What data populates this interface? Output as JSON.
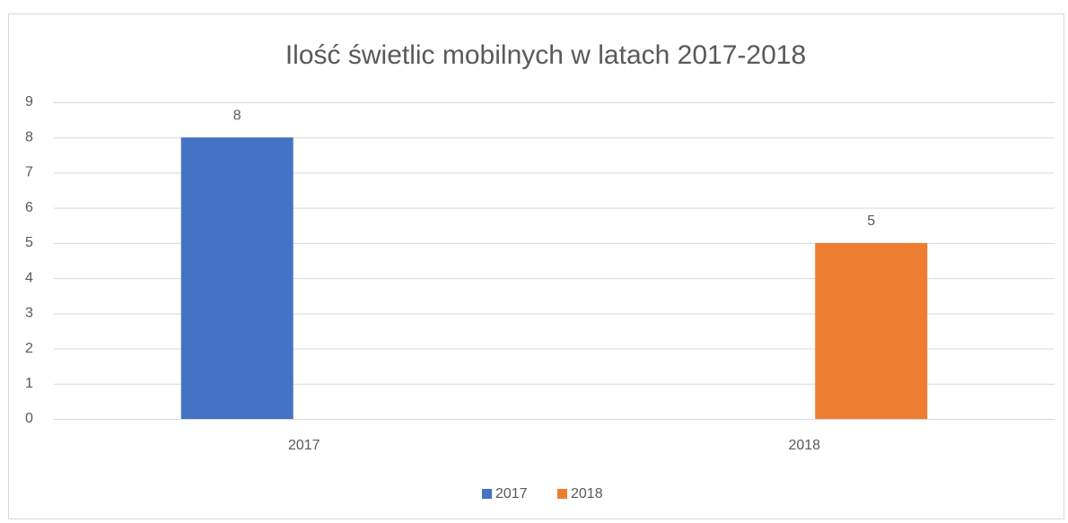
{
  "chart_data": {
    "type": "bar",
    "title": "Ilość świetlic mobilnych w latach 2017-2018",
    "categories": [
      "2017",
      "2018"
    ],
    "series": [
      {
        "name": "2017",
        "color": "#4472c4",
        "values": [
          8,
          null
        ]
      },
      {
        "name": "2018",
        "color": "#ed7d31",
        "values": [
          null,
          5
        ]
      }
    ],
    "ylim": [
      0,
      9
    ],
    "yticks": [
      0,
      1,
      2,
      3,
      4,
      5,
      6,
      7,
      8,
      9
    ],
    "grid": true,
    "legend": "bottom",
    "data_labels": true
  }
}
